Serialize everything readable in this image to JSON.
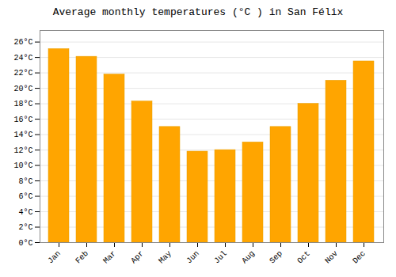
{
  "chart_data": {
    "type": "bar",
    "title": "Average monthly temperatures (°C ) in San Félix",
    "categories": [
      "Jan",
      "Feb",
      "Mar",
      "Apr",
      "May",
      "Jun",
      "Jul",
      "Aug",
      "Sep",
      "Oct",
      "Nov",
      "Dec"
    ],
    "values": [
      25.1,
      24.1,
      21.8,
      18.3,
      15.0,
      11.8,
      12.0,
      13.0,
      15.0,
      18.0,
      21.0,
      23.5
    ],
    "color": "#FFA500",
    "ylim": [
      0,
      27.5
    ],
    "yticks": [
      {
        "value": 0,
        "label": "0°C"
      },
      {
        "value": 2,
        "label": "2°C"
      },
      {
        "value": 4,
        "label": "4°C"
      },
      {
        "value": 6,
        "label": "6°C"
      },
      {
        "value": 8,
        "label": "8°C"
      },
      {
        "value": 10,
        "label": "10°C"
      },
      {
        "value": 12,
        "label": "12°C"
      },
      {
        "value": 14,
        "label": "14°C"
      },
      {
        "value": 16,
        "label": "16°C"
      },
      {
        "value": 18,
        "label": "18°C"
      },
      {
        "value": 20,
        "label": "20°C"
      },
      {
        "value": 22,
        "label": "22°C"
      },
      {
        "value": 24,
        "label": "24°C"
      },
      {
        "value": 26,
        "label": "26°C"
      }
    ],
    "grid": true
  }
}
